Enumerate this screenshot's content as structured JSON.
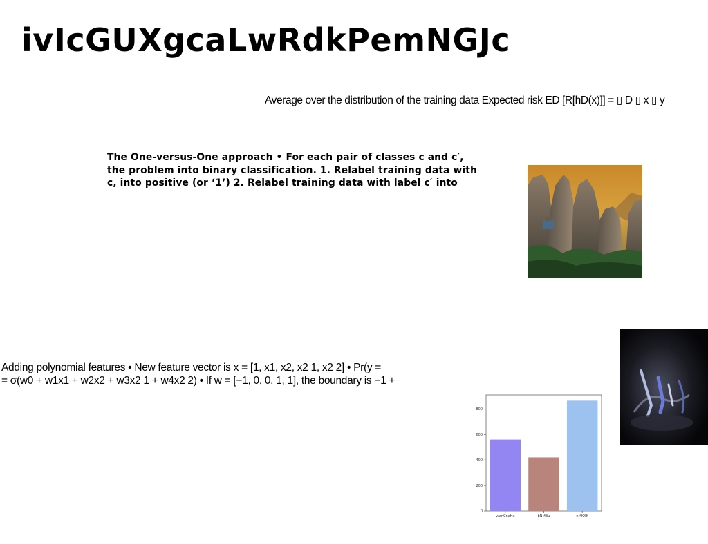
{
  "title": "ivIcGUXgcaLwRdkPemNGJc",
  "risk_text": "Average over the distribution of the training data Expected risk ED [R[hD(x)]] = ▯ D ▯ x ▯ y",
  "ovo_lines": [
    "The One-versus-One approach • For each pair of classes c and c′,",
    "the problem into binary classification. 1. Relabel training data with",
    "c, into positive (or ‘1’) 2. Relabel training data with label c′ into"
  ],
  "poly_lines": [
    "Adding polynomial features • New feature vector is x = [1, x1, x2, x2 1, x2 2] • Pr(y =",
    "= σ(w0 + w1x1 + w2x2 + w3x2 1 + w4x2 2) • If w = [−1, 0, 0, 1, 1], the boundary is −1 +"
  ],
  "images": {
    "rocks_photo": "rock-pillars-photo",
    "dark_photo": "dark-abstract-photo"
  },
  "chart_data": {
    "type": "bar",
    "categories": [
      "vamCnxHu",
      "bNMBu",
      "nMKXK"
    ],
    "values": [
      560,
      420,
      865
    ],
    "colors": [
      "#9385f2",
      "#b8847b",
      "#9ec2ef"
    ],
    "title": "",
    "xlabel": "",
    "ylabel": "",
    "ylim": [
      0,
      910
    ],
    "yticks": [
      0,
      200,
      400,
      600,
      800
    ],
    "grid": false
  }
}
